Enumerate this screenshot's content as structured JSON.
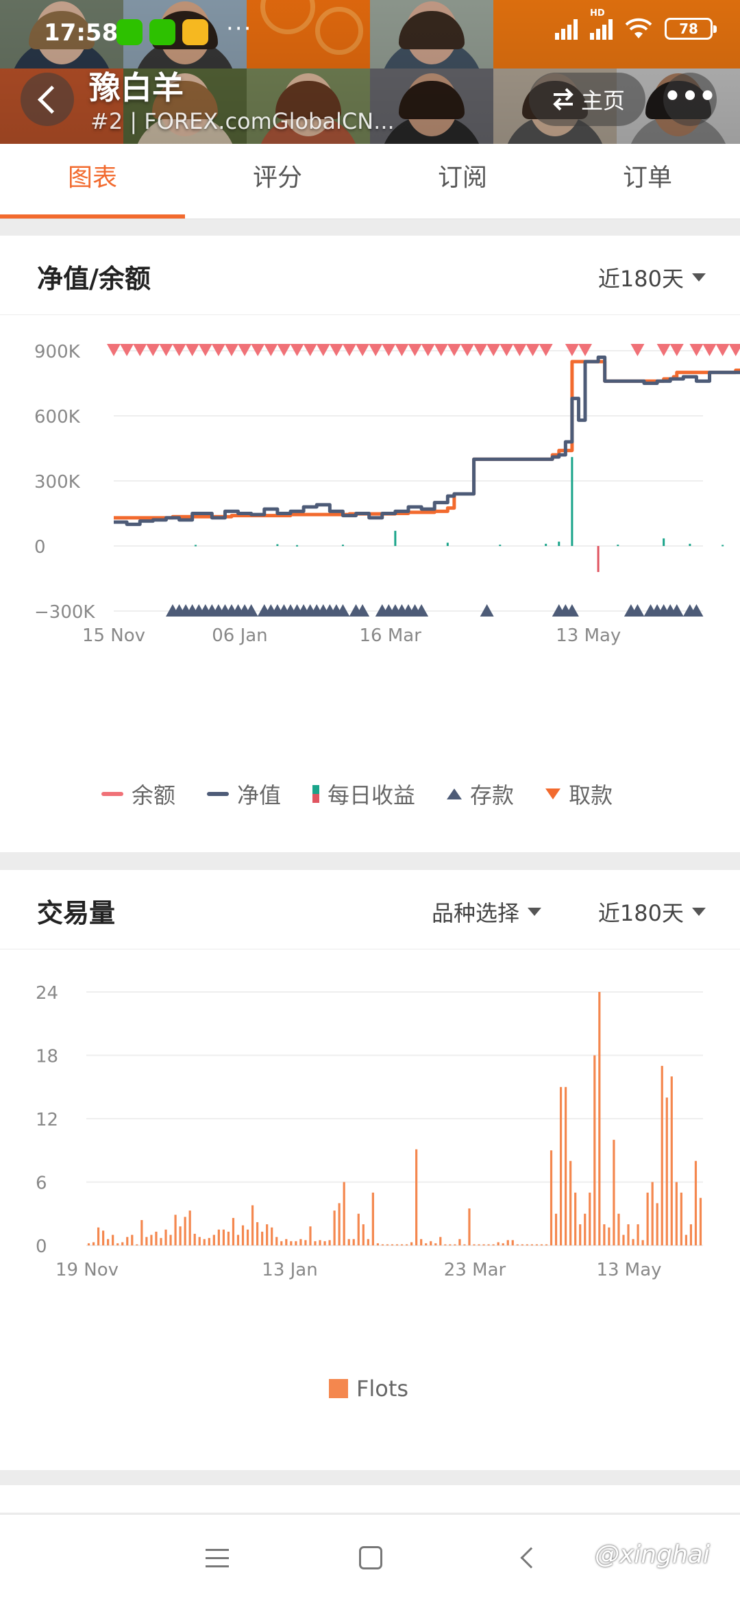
{
  "status_bar": {
    "time": "17:58",
    "dots": "···",
    "network": "HD",
    "battery": "78"
  },
  "header": {
    "trader_name": "豫白羊",
    "subtitle": "#2 | FOREX.comGlobalCN...",
    "home_label": "主页",
    "more_label": "•••"
  },
  "tabs": [
    "图表",
    "评分",
    "订阅",
    "订单"
  ],
  "colors": {
    "accent": "#f26a2e",
    "balance": "#f07177",
    "equity": "#4d5b77",
    "profit_up": "#1aa48a",
    "profit_down": "#e05560",
    "deposit": "#4d5b77",
    "withdraw": "#f26a2e",
    "flots": "#f4874e"
  },
  "equity_card": {
    "title": "净值/余额",
    "period": "近180天",
    "legend": [
      "余额",
      "净值",
      "每日收益",
      "存款",
      "取款"
    ]
  },
  "volume_card": {
    "title": "交易量",
    "symbol_filter": "品种选择",
    "period": "近180天",
    "legend": [
      "Flots"
    ]
  },
  "chart_data": [
    {
      "type": "line",
      "title": "净值/余额",
      "ylim": [
        -300000,
        900000
      ],
      "y_ticks": [
        "900K",
        "600K",
        "300K",
        "0",
        "−300K"
      ],
      "x_ticks": [
        "15 Nov",
        "06 Jan",
        "16 Mar",
        "13 May"
      ],
      "day_range": [
        0,
        180
      ],
      "series": [
        {
          "name": "余额",
          "points": [
            [
              0,
              130000
            ],
            [
              18,
              135000
            ],
            [
              36,
              140000
            ],
            [
              54,
              145000
            ],
            [
              72,
              148000
            ],
            [
              86,
              150000
            ],
            [
              90,
              155000
            ],
            [
              98,
              160000
            ],
            [
              102,
              175000
            ],
            [
              104,
              240000
            ],
            [
              108,
              240000
            ],
            [
              110,
              400000
            ],
            [
              130,
              400000
            ],
            [
              132,
              400000
            ],
            [
              134,
              420000
            ],
            [
              136,
              440000
            ],
            [
              139,
              440000
            ],
            [
              140,
              850000
            ],
            [
              146,
              850000
            ],
            [
              150,
              760000
            ],
            [
              156,
              760000
            ],
            [
              162,
              760000
            ],
            [
              168,
              770000
            ],
            [
              171,
              780000
            ],
            [
              172,
              800000
            ],
            [
              186,
              800000
            ],
            [
              190,
              810000
            ],
            [
              206,
              820000
            ],
            [
              208,
              830000
            ],
            [
              222,
              840000
            ],
            [
              230,
              840000
            ],
            [
              234,
              860000
            ]
          ]
        },
        {
          "name": "净值",
          "points": [
            [
              0,
              110000
            ],
            [
              4,
              100000
            ],
            [
              8,
              115000
            ],
            [
              12,
              120000
            ],
            [
              16,
              130000
            ],
            [
              20,
              120000
            ],
            [
              24,
              150000
            ],
            [
              28,
              150000
            ],
            [
              30,
              130000
            ],
            [
              34,
              160000
            ],
            [
              38,
              150000
            ],
            [
              42,
              145000
            ],
            [
              46,
              170000
            ],
            [
              50,
              150000
            ],
            [
              54,
              160000
            ],
            [
              58,
              180000
            ],
            [
              62,
              190000
            ],
            [
              66,
              160000
            ],
            [
              70,
              140000
            ],
            [
              74,
              150000
            ],
            [
              78,
              130000
            ],
            [
              82,
              150000
            ],
            [
              86,
              160000
            ],
            [
              90,
              180000
            ],
            [
              94,
              170000
            ],
            [
              98,
              200000
            ],
            [
              102,
              230000
            ],
            [
              104,
              240000
            ],
            [
              110,
              400000
            ],
            [
              128,
              400000
            ],
            [
              132,
              400000
            ],
            [
              134,
              410000
            ],
            [
              136,
              420000
            ],
            [
              138,
              480000
            ],
            [
              140,
              680000
            ],
            [
              142,
              580000
            ],
            [
              144,
              850000
            ],
            [
              148,
              870000
            ],
            [
              150,
              760000
            ],
            [
              156,
              760000
            ],
            [
              162,
              750000
            ],
            [
              166,
              760000
            ],
            [
              170,
              770000
            ],
            [
              174,
              780000
            ],
            [
              178,
              760000
            ],
            [
              182,
              800000
            ],
            [
              188,
              800000
            ],
            [
              194,
              810000
            ],
            [
              202,
              810000
            ],
            [
              208,
              830000
            ],
            [
              214,
              830000
            ],
            [
              218,
              840000
            ],
            [
              222,
              860000
            ],
            [
              226,
              830000
            ],
            [
              230,
              840000
            ],
            [
              234,
              850000
            ]
          ]
        }
      ],
      "daily_profit": [
        [
          25,
          5000
        ],
        [
          50,
          8000
        ],
        [
          56,
          4000
        ],
        [
          70,
          6000
        ],
        [
          86,
          70000
        ],
        [
          102,
          15000
        ],
        [
          118,
          6000
        ],
        [
          132,
          10000
        ],
        [
          136,
          20000
        ],
        [
          140,
          410000
        ],
        [
          148,
          -120000
        ],
        [
          154,
          6000
        ],
        [
          168,
          35000
        ],
        [
          176,
          10000
        ],
        [
          186,
          5000
        ],
        [
          196,
          8000
        ],
        [
          206,
          5000
        ],
        [
          212,
          4000
        ],
        [
          222,
          6000
        ],
        [
          228,
          3000
        ]
      ],
      "deposit_markers": [
        18,
        20,
        22,
        24,
        26,
        28,
        30,
        32,
        34,
        36,
        38,
        40,
        42,
        46,
        48,
        50,
        52,
        54,
        56,
        58,
        60,
        62,
        64,
        66,
        68,
        70,
        74,
        76,
        82,
        84,
        86,
        88,
        90,
        92,
        94,
        114,
        136,
        138,
        140,
        158,
        160,
        164,
        166,
        168,
        170,
        172,
        176,
        178,
        200,
        202,
        204,
        206,
        208,
        210,
        212,
        214,
        216,
        218
      ],
      "withdraw_markers": [
        0,
        4,
        8,
        12,
        16,
        20,
        24,
        28,
        32,
        36,
        40,
        44,
        48,
        52,
        56,
        60,
        64,
        68,
        72,
        76,
        80,
        84,
        88,
        92,
        96,
        100,
        104,
        108,
        112,
        116,
        120,
        124,
        128,
        132,
        140,
        144,
        160,
        168,
        172,
        178,
        182,
        186,
        190,
        194,
        198,
        202,
        206,
        210,
        214,
        218,
        222,
        226,
        230,
        234
      ]
    },
    {
      "type": "bar",
      "title": "交易量",
      "ylim": [
        0,
        24
      ],
      "y_ticks": [
        "24",
        "18",
        "12",
        "6",
        "0"
      ],
      "x_ticks": [
        "19 Nov",
        "13 Jan",
        "23 Mar",
        "13 May"
      ],
      "series": [
        {
          "name": "Flots",
          "values": [
            0.2,
            0.3,
            1.7,
            1.4,
            0.6,
            1.0,
            0.2,
            0.3,
            0.8,
            1.0,
            0.1,
            2.4,
            0.8,
            1.0,
            1.3,
            0.7,
            1.5,
            1.0,
            2.9,
            1.8,
            2.7,
            3.3,
            1.1,
            0.8,
            0.6,
            0.7,
            1.0,
            1.5,
            1.5,
            1.3,
            2.6,
            1.0,
            1.9,
            1.5,
            3.8,
            2.2,
            1.3,
            2.0,
            1.7,
            0.8,
            0.4,
            0.6,
            0.4,
            0.4,
            0.6,
            0.5,
            1.8,
            0.4,
            0.5,
            0.4,
            0.5,
            3.3,
            4.0,
            6.0,
            0.6,
            0.6,
            3.0,
            2.0,
            0.6,
            5.0,
            0.2,
            0.1,
            0.1,
            0.1,
            0.1,
            0.1,
            0.1,
            0.3,
            9.1,
            0.6,
            0.2,
            0.4,
            0.2,
            0.8,
            0.1,
            0.1,
            0.1,
            0.6,
            0.1,
            3.5,
            0.1,
            0.1,
            0.1,
            0.1,
            0.1,
            0.3,
            0.2,
            0.5,
            0.5,
            0.1,
            0.1,
            0.1,
            0.1,
            0.1,
            0.1,
            0.1,
            9.0,
            3.0,
            15.0,
            15.0,
            8.0,
            5.0,
            2.0,
            3.0,
            5.0,
            18.0,
            24.0,
            2.0,
            1.7,
            10.0,
            3.0,
            1.0,
            2.0,
            0.6,
            2.0,
            0.5,
            5.0,
            6.0,
            4.0,
            17.0,
            14.0,
            16.0,
            6.0,
            5.0,
            1.0,
            2.0,
            8.0,
            4.5
          ]
        }
      ]
    }
  ],
  "navbar": {
    "watermark": "@xinghai"
  }
}
